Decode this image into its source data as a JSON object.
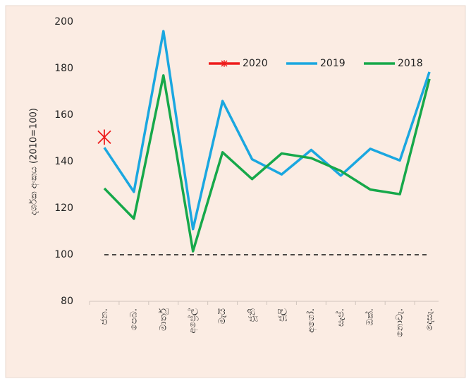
{
  "chart_data": {
    "type": "line",
    "y_label": "දර්ශක අංකය (2010=100)",
    "categories": [
      "ජන.",
      "පෙබ.",
      "මාර්තු",
      "අප්‍රේල්",
      "මැයි",
      "ජූනි",
      "ජූලි",
      "අගෝ.",
      "සැප්.",
      "ඔක්.",
      "නොවැ.",
      "දෙසැ."
    ],
    "series": [
      {
        "name": "2020",
        "color": "#ee1c1c",
        "marker": "asterisk",
        "values": [
          150.5,
          null,
          null,
          null,
          null,
          null,
          null,
          null,
          null,
          null,
          null,
          null
        ]
      },
      {
        "name": "2019",
        "color": "#1aa7e0",
        "values": [
          146,
          127,
          196,
          111,
          166,
          141,
          134.5,
          145,
          134,
          145.5,
          140.5,
          178.5
        ]
      },
      {
        "name": "2018",
        "color": "#16a84a",
        "values": [
          128.5,
          115.5,
          177,
          101.5,
          144,
          132.5,
          143.5,
          141.5,
          136,
          128,
          126,
          175.5
        ]
      }
    ],
    "reference_line": 100,
    "ylim": [
      80,
      200
    ],
    "yticks": [
      80,
      100,
      120,
      140,
      160,
      180,
      200
    ],
    "legend": "top"
  }
}
